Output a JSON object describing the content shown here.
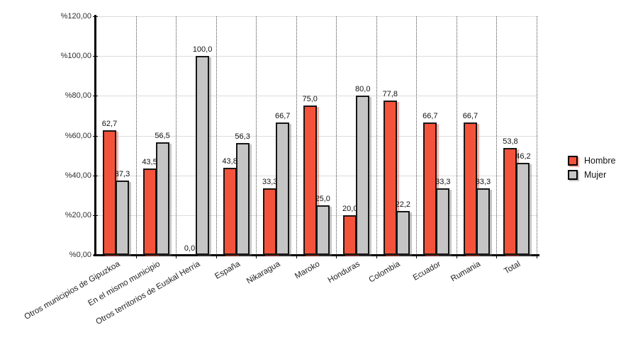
{
  "chart_data": {
    "type": "bar",
    "title": "",
    "xlabel": "",
    "ylabel": "",
    "categories": [
      "Otros municipios de Gipuzkoa",
      "En el mismo municipio",
      "Otros territorios de Euskal Herria",
      "España",
      "Nikaragua",
      "Maroko",
      "Honduras",
      "Colombia",
      "Ecuador",
      "Rumania",
      "Total"
    ],
    "series": [
      {
        "name": "Hombre",
        "color": "#f4533b",
        "shadow_color": "rgba(244,83,59,0.45)",
        "values": [
          62.7,
          43.5,
          0.0,
          43.8,
          33.3,
          75.0,
          20.0,
          77.8,
          66.7,
          66.7,
          53.8
        ],
        "value_labels": [
          "62,7",
          "43,5",
          "0,0",
          "43,8",
          "33,3",
          "75,0",
          "20,0",
          "77,8",
          "66,7",
          "66,7",
          "53,8"
        ]
      },
      {
        "name": "Mujer",
        "color": "#c5c5c5",
        "shadow_color": "rgba(110,110,110,0.40)",
        "values": [
          37.3,
          56.5,
          100.0,
          56.3,
          66.7,
          25.0,
          80.0,
          22.2,
          33.3,
          33.3,
          46.2
        ],
        "value_labels": [
          "37,3",
          "56,5",
          "100,0",
          "56,3",
          "66,7",
          "25,0",
          "80,0",
          "22,2",
          "33,3",
          "33,3",
          "46,2"
        ]
      }
    ],
    "ylim": [
      0,
      120
    ],
    "y_tick_step": 20,
    "y_tick_labels": [
      "%0,00",
      "%20,00",
      "%40,00",
      "%60,00",
      "%80,00",
      "%100,00",
      "%120,00"
    ],
    "grid": "horizontal solid light gray, vertical dotted dark between categories",
    "legend_position": "right",
    "colors": {
      "background": "#ffffff",
      "axis": "#000000",
      "bar_outline": "#161616",
      "h_gridline": "#dcdcdc",
      "v_gridline": "#4a4a4a",
      "text": "#222222"
    }
  }
}
